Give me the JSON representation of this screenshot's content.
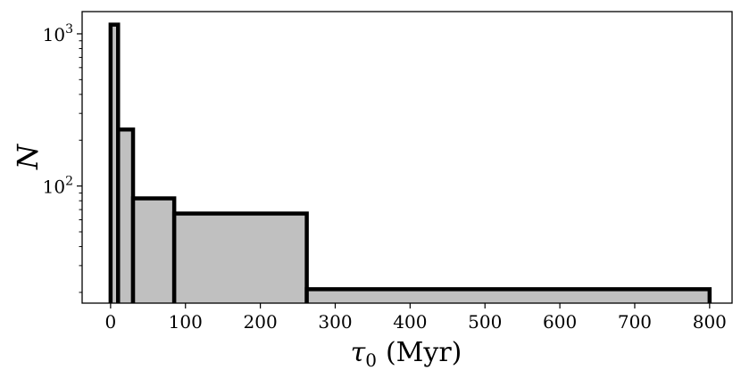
{
  "chart_data": {
    "type": "histogram",
    "x_label_symbol": "τ",
    "x_label_subscript": "0",
    "x_label_unit": "(Myr)",
    "y_label": "N",
    "y_scale": "log",
    "x_range": [
      -38,
      830
    ],
    "y_range": [
      17,
      1400
    ],
    "x_ticks": [
      0,
      100,
      200,
      300,
      400,
      500,
      600,
      700,
      800
    ],
    "x_tick_labels": [
      "0",
      "100",
      "200",
      "300",
      "400",
      "500",
      "600",
      "700",
      "800"
    ],
    "y_major_ticks": [
      100,
      1000
    ],
    "y_tick_labels": [
      {
        "base": "10",
        "exp": "2"
      },
      {
        "base": "10",
        "exp": "3"
      }
    ],
    "y_minor_ticks": [
      20,
      30,
      40,
      50,
      60,
      70,
      80,
      90,
      200,
      300,
      400,
      500,
      600,
      700,
      800,
      900
    ],
    "bins": [
      {
        "x0": 0,
        "x1": 10,
        "count": 1150
      },
      {
        "x0": 10,
        "x1": 30,
        "count": 235
      },
      {
        "x0": 30,
        "x1": 85,
        "count": 83
      },
      {
        "x0": 85,
        "x1": 262,
        "count": 66
      },
      {
        "x0": 262,
        "x1": 800,
        "count": 21
      }
    ],
    "bar_fill": "#c0c0c0",
    "bar_edge": "#000000",
    "grid": false,
    "legend": "none"
  }
}
